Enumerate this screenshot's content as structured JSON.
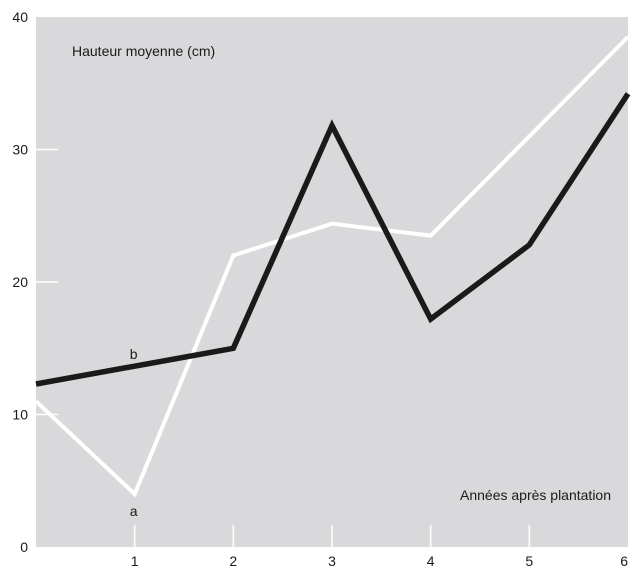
{
  "chart_data": {
    "type": "line",
    "title": "",
    "ylabel": "Hauteur moyenne (cm)",
    "xlabel": "Années après plantation",
    "xlim": [
      0,
      6
    ],
    "ylim": [
      0,
      40
    ],
    "x_ticks": [
      1,
      2,
      3,
      4,
      5,
      6
    ],
    "y_ticks": [
      0,
      10,
      20,
      30,
      40
    ],
    "grid": false,
    "legend": "none",
    "background_color": "#d9d9db",
    "series": [
      {
        "name": "a",
        "color": "#ffffff",
        "x": [
          0,
          1,
          2,
          3,
          4,
          5,
          6
        ],
        "y": [
          11,
          4,
          22,
          24.4,
          23.5,
          31,
          38.5
        ]
      },
      {
        "name": "b",
        "color": "#1a1a1a",
        "x": [
          0,
          2,
          3,
          4,
          5,
          6
        ],
        "y": [
          12.3,
          15,
          31.8,
          17.2,
          22.8,
          34.2
        ]
      }
    ]
  }
}
